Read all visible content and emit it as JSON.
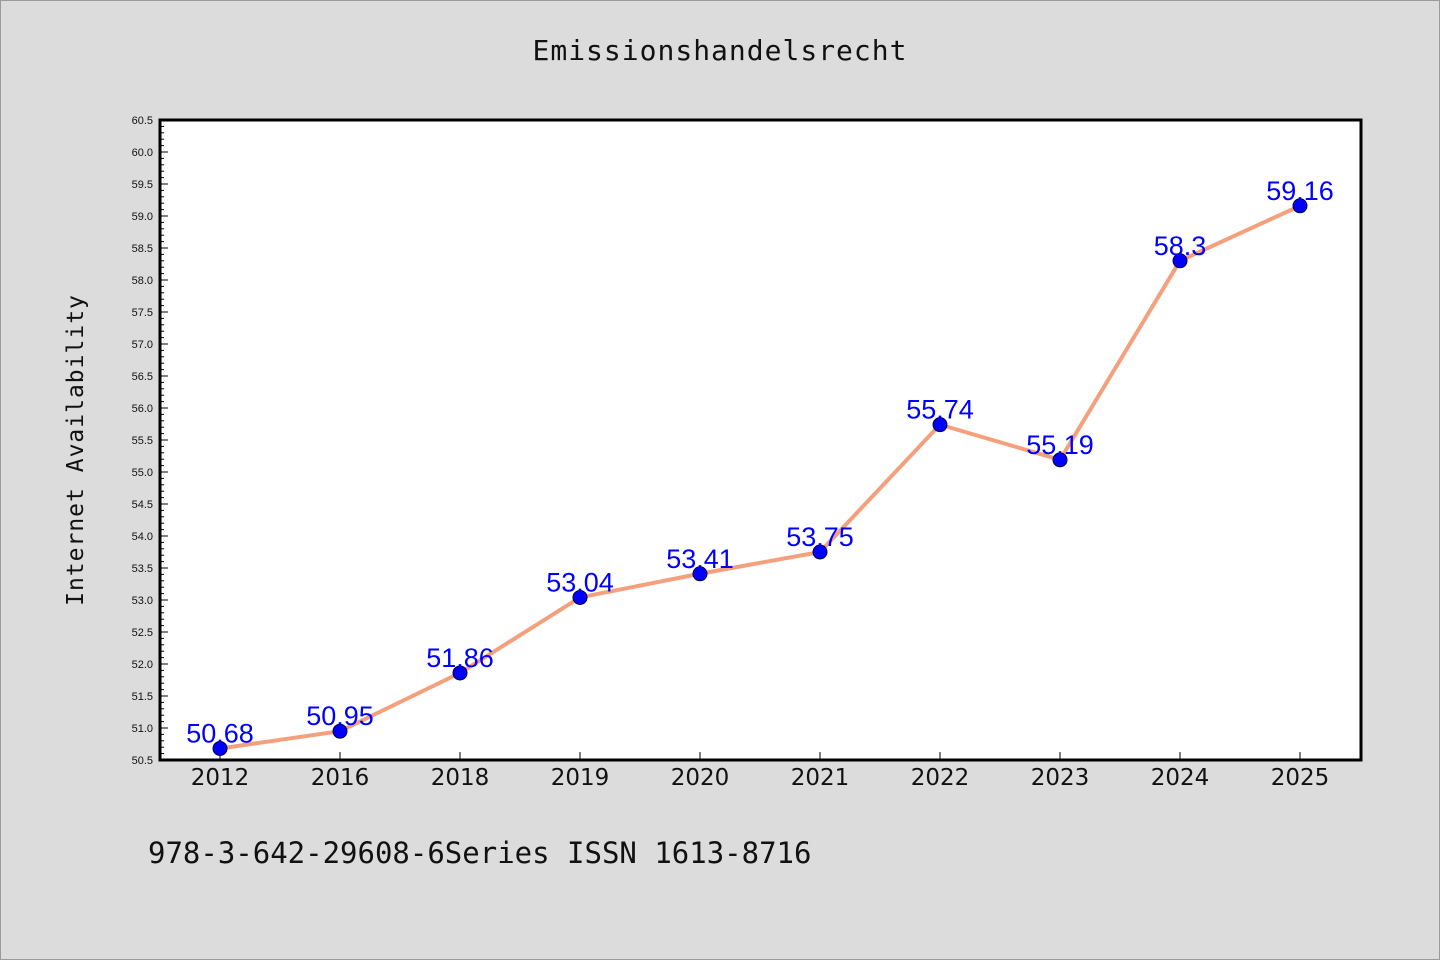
{
  "chart_data": {
    "type": "line",
    "title": "Emissionshandelsrecht",
    "xlabel": "",
    "ylabel": "Internet Availability",
    "categories": [
      "2012",
      "2016",
      "2018",
      "2019",
      "2020",
      "2021",
      "2022",
      "2023",
      "2024",
      "2025"
    ],
    "series": [
      {
        "values": [
          50.68,
          50.95,
          51.86,
          53.04,
          53.41,
          53.75,
          55.74,
          55.19,
          58.3,
          59.16
        ],
        "data_labels": [
          "50.68",
          "50.95",
          "51.86",
          "53.04",
          "53.41",
          "53.75",
          "55.74",
          "55.19",
          "58.3",
          "59.16"
        ],
        "line_color": "#f4a07c",
        "marker_color": "#0000ff"
      }
    ],
    "ylim": [
      50.5,
      60.5
    ],
    "yticks": [
      "50.5",
      "51.0",
      "51.5",
      "52.0",
      "52.5",
      "53.0",
      "53.5",
      "54.0",
      "54.5",
      "55.0",
      "55.5",
      "56.0",
      "56.5",
      "57.0",
      "57.5",
      "58.0",
      "58.5",
      "59.0",
      "59.5",
      "60.0",
      "60.5"
    ],
    "grid": false,
    "label_color": "#0000ff"
  },
  "footer_text": "978-3-642-29608-6Series ISSN 1613-8716"
}
